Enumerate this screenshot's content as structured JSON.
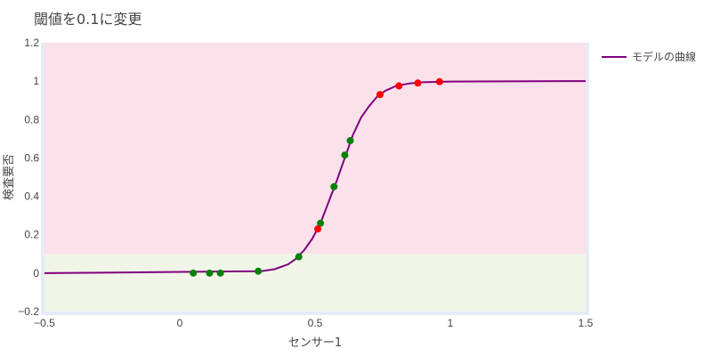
{
  "chart_data": {
    "type": "scatter",
    "title": "閾値を0.1に変更",
    "xlabel": "センサー1",
    "ylabel": "検査要否",
    "xlim": [
      -0.5,
      1.5
    ],
    "ylim": [
      -0.2,
      1.2
    ],
    "x_ticks": [
      -0.5,
      0,
      0.5,
      1,
      1.5
    ],
    "x_tick_labels": [
      "−0.5",
      "0",
      "0.5",
      "1",
      "1.5"
    ],
    "y_ticks": [
      -0.2,
      0,
      0.2,
      0.4,
      0.6,
      0.8,
      1,
      1.2
    ],
    "y_tick_labels": [
      "−0.2",
      "0",
      "0.2",
      "0.4",
      "0.6",
      "0.8",
      "1",
      "1.2"
    ],
    "grid": false,
    "legend_position": "top-right",
    "threshold": 0.1,
    "regions": [
      {
        "y_from": 0.1,
        "y_to": 1.2,
        "color": "#fae1ea"
      },
      {
        "y_from": -0.2,
        "y_to": 0.1,
        "color": "#f0f5e7"
      }
    ],
    "curve": {
      "name": "モデルの曲線",
      "color": "#800080",
      "x": [
        -0.5,
        0.3,
        0.35,
        0.4,
        0.43,
        0.46,
        0.49,
        0.52,
        0.55,
        0.58,
        0.61,
        0.64,
        0.67,
        0.7,
        0.73,
        0.76,
        0.8,
        0.85,
        0.9,
        1.0,
        1.5
      ],
      "y": [
        0.0,
        0.01,
        0.02,
        0.045,
        0.075,
        0.12,
        0.18,
        0.26,
        0.37,
        0.48,
        0.6,
        0.72,
        0.81,
        0.87,
        0.92,
        0.95,
        0.975,
        0.988,
        0.994,
        0.998,
        1.0
      ]
    },
    "series": [
      {
        "color": "#008000",
        "x": [
          0.05,
          0.11,
          0.15,
          0.29,
          0.44,
          0.52,
          0.57,
          0.61,
          0.63
        ],
        "y": [
          0.0,
          0.0,
          0.0,
          0.01,
          0.085,
          0.26,
          0.45,
          0.615,
          0.69
        ]
      },
      {
        "color": "#ff0000",
        "x": [
          0.51,
          0.74,
          0.81,
          0.88,
          0.96
        ],
        "y": [
          0.23,
          0.93,
          0.975,
          0.99,
          0.997
        ]
      }
    ]
  }
}
